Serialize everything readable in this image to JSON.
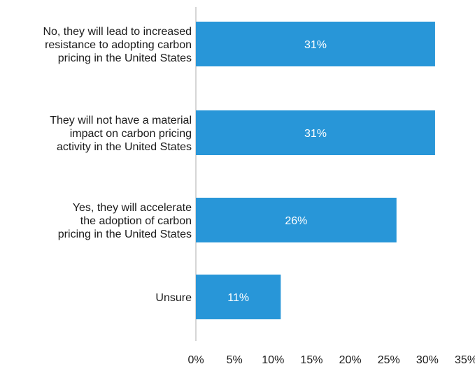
{
  "chart_data": {
    "type": "bar",
    "orientation": "horizontal",
    "categories": [
      [
        "No, they will lead to increased",
        "resistance to adopting carbon",
        "pricing in the United States"
      ],
      [
        "They will not have a material",
        "impact on carbon pricing",
        "activity in the United States"
      ],
      [
        "Yes, they will accelerate",
        "the adoption of carbon",
        "pricing in the United States"
      ],
      [
        "Unsure"
      ]
    ],
    "values": [
      31,
      31,
      26,
      11
    ],
    "data_labels": [
      "31%",
      "31%",
      "26%",
      "11%"
    ],
    "x_ticks": [
      "0%",
      "5%",
      "10%",
      "15%",
      "20%",
      "25%",
      "30%",
      "35%"
    ],
    "xlim": [
      0,
      35
    ],
    "bar_color": "#2896D8",
    "grid": false,
    "legend": "none"
  }
}
